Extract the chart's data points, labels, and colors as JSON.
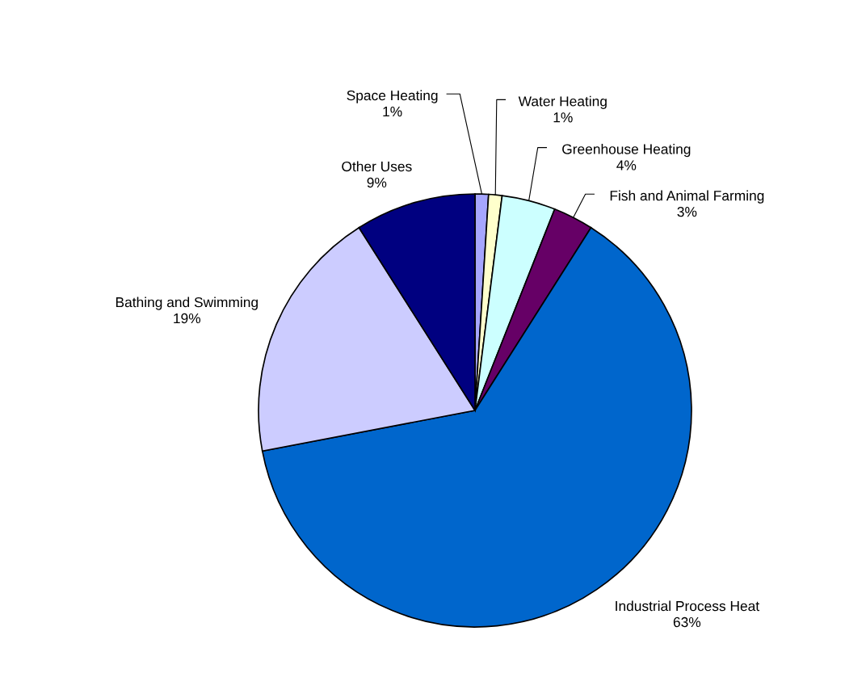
{
  "chart_data": {
    "type": "pie",
    "categories": [
      "Space Heating",
      "Water Heating",
      "Greenhouse Heating",
      "Fish and Animal Farming",
      "Industrial Process Heat",
      "Bathing and Swimming",
      "Other Uses"
    ],
    "values": [
      1,
      1,
      4,
      3,
      63,
      19,
      9
    ],
    "colors": [
      "#a6a6ff",
      "#ffffcc",
      "#ccffff",
      "#660066",
      "#0066cc",
      "#ccccff",
      "#000080"
    ],
    "value_labels": [
      "1%",
      "1%",
      "4%",
      "3%",
      "63%",
      "19%",
      "9%"
    ],
    "legend": false
  }
}
